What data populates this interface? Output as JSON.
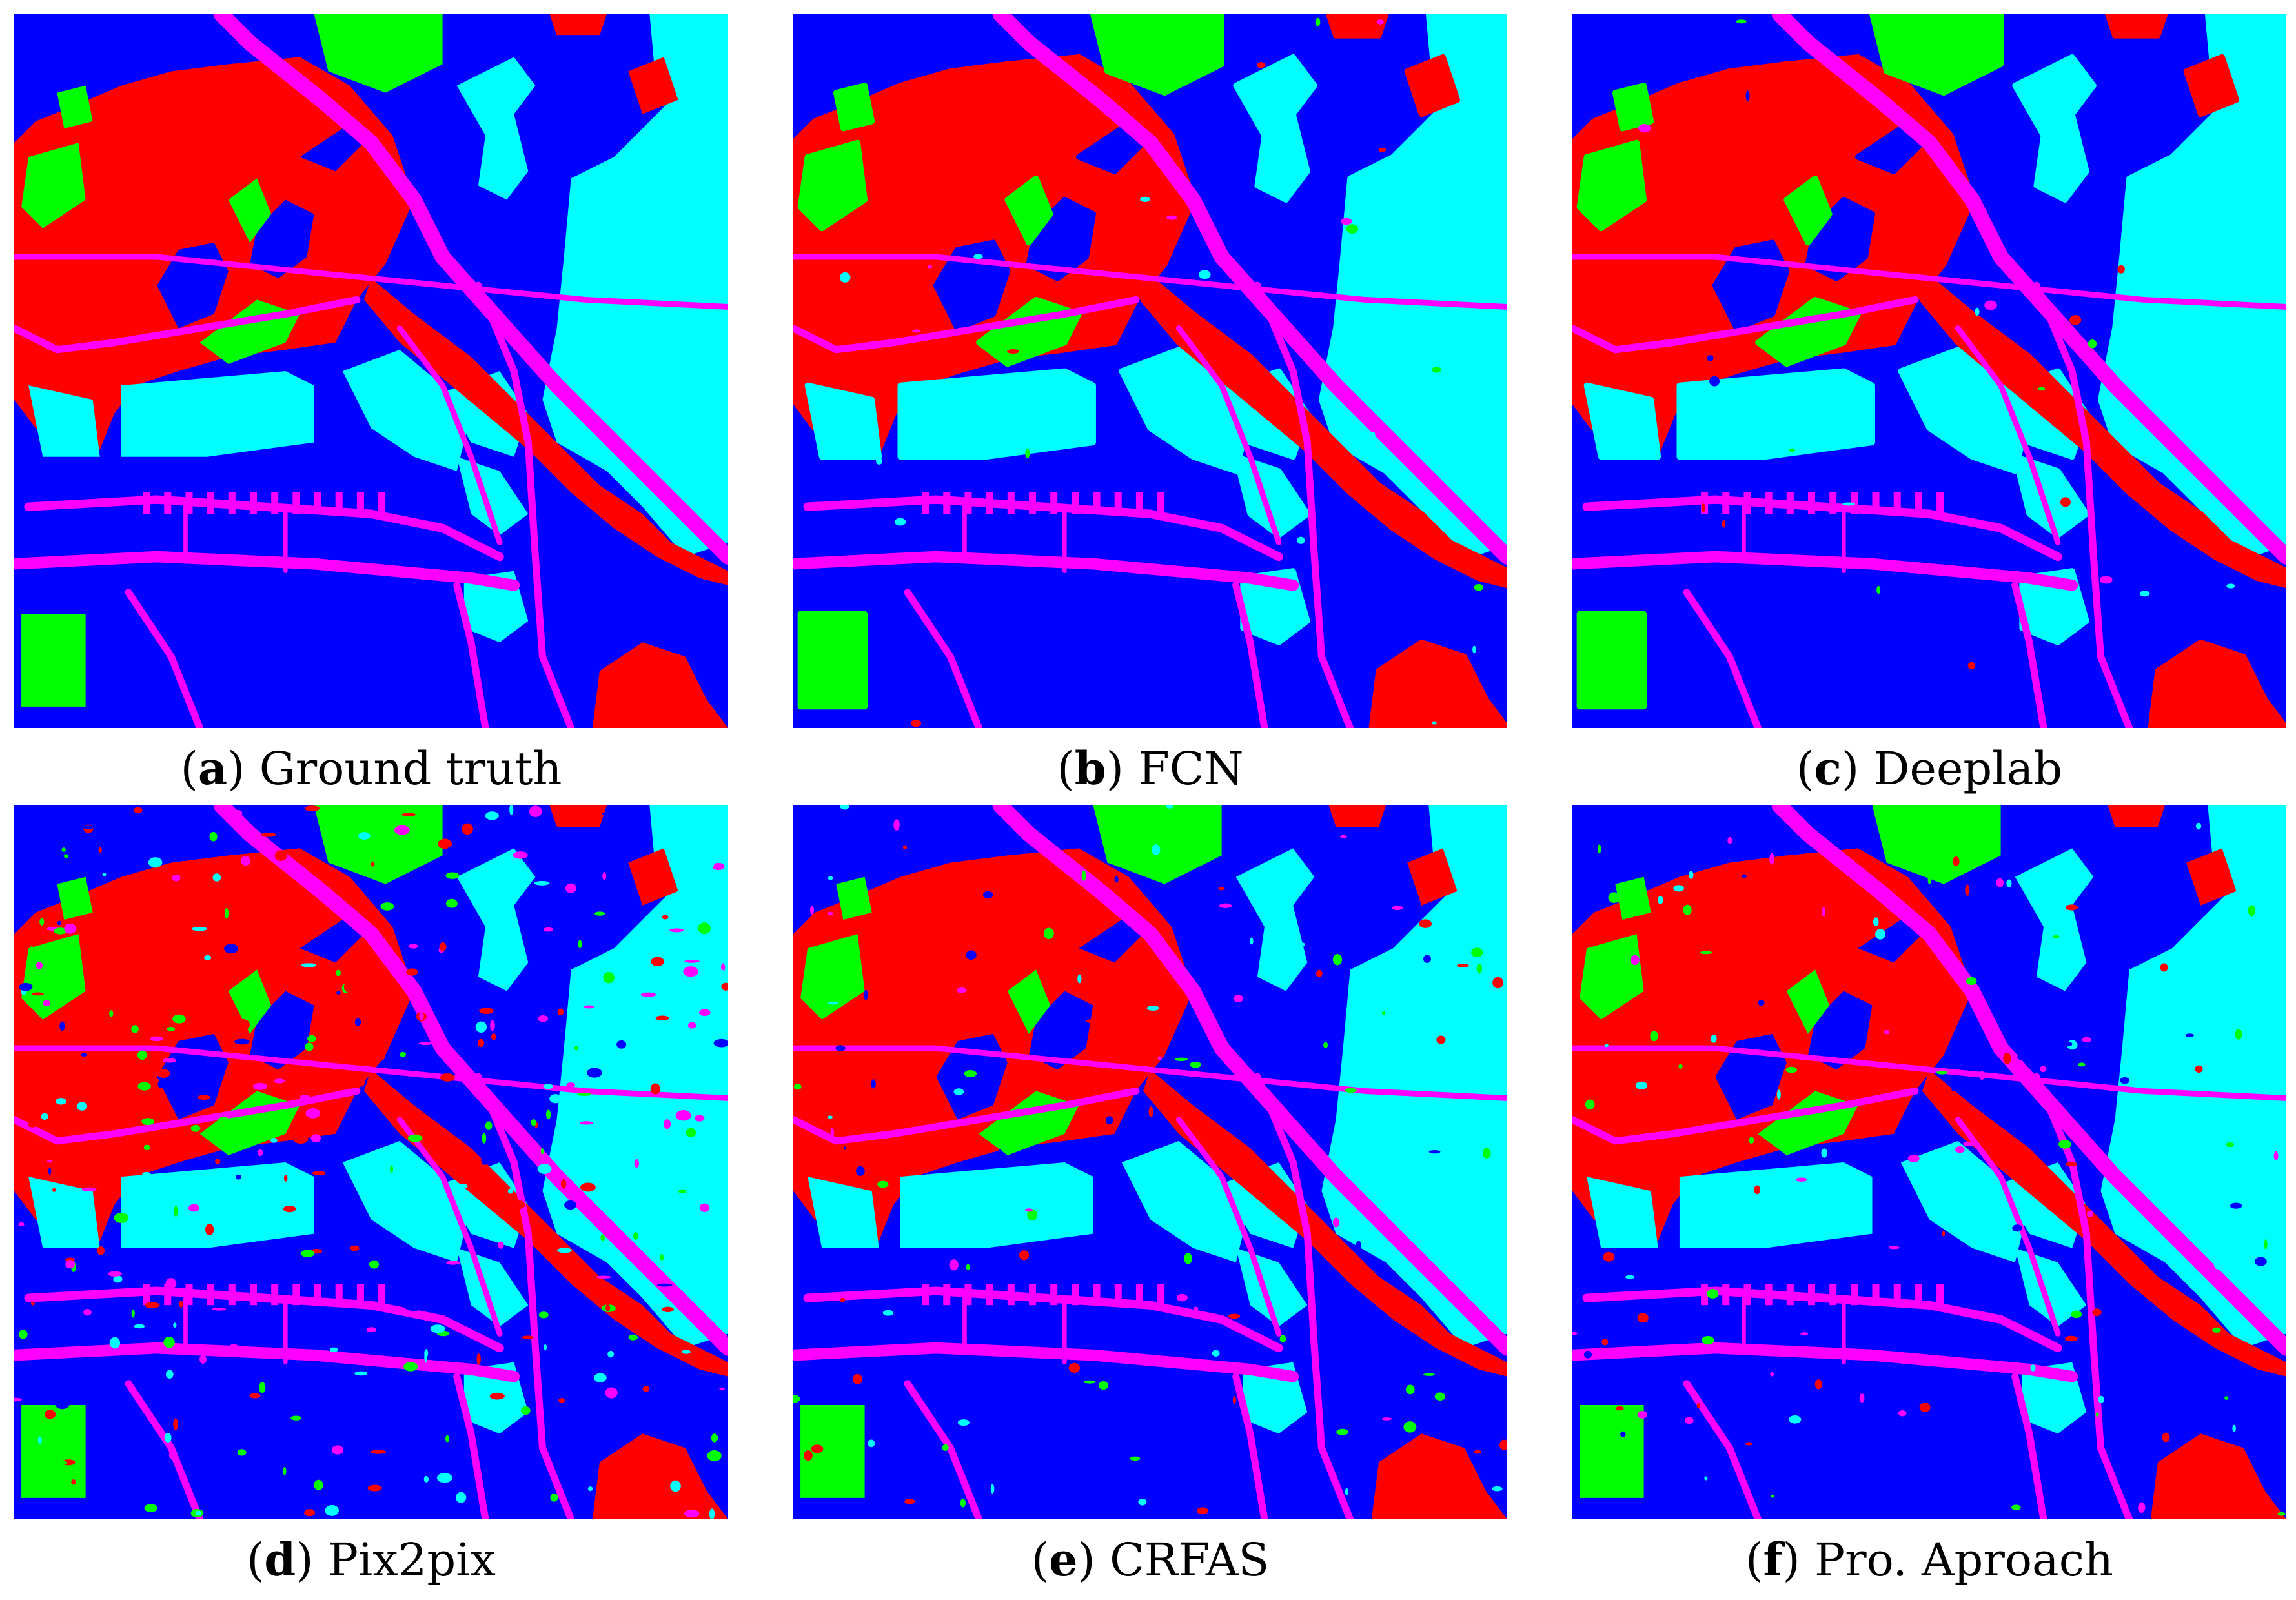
{
  "colors": {
    "water": "#0000ff",
    "building": "#ff0000",
    "vegetation": "#00ff00",
    "road": "#ff00ff",
    "open_land": "#00ffff"
  },
  "panels": [
    {
      "letter": "a",
      "label": "Ground truth",
      "variant": "gt"
    },
    {
      "letter": "b",
      "label": "FCN",
      "variant": "smooth"
    },
    {
      "letter": "c",
      "label": "Deeplab",
      "variant": "smooth"
    },
    {
      "letter": "d",
      "label": "Pix2pix",
      "variant": "noisy"
    },
    {
      "letter": "e",
      "label": "CRFAS",
      "variant": "mid"
    },
    {
      "letter": "f",
      "label": "Pro. Aproach",
      "variant": "mid"
    }
  ]
}
